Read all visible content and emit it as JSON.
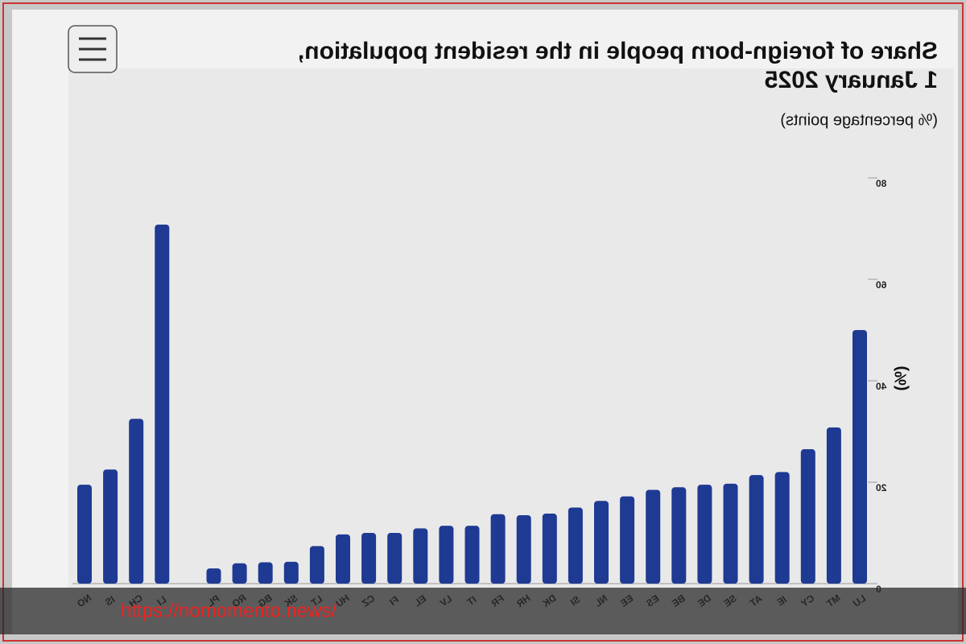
{
  "chart_data": {
    "type": "bar",
    "title": "Share of foreign-born people in the resident population, 1 January 2025",
    "subtitle": "(% percentage points)",
    "y_label": "(%)",
    "categories": [
      "LU",
      "MT",
      "CY",
      "IE",
      "AT",
      "SE",
      "DE",
      "BE",
      "ES",
      "EE",
      "NL",
      "SI",
      "DK",
      "HR",
      "FR",
      "IT",
      "LV",
      "EL",
      "FI",
      "CZ",
      "HU",
      "LT",
      "SK",
      "BG",
      "RO",
      "PL",
      null,
      "LI",
      "CH",
      "IS",
      "NO"
    ],
    "values": [
      50,
      30.8,
      26.5,
      22,
      21.4,
      19.7,
      19.5,
      19,
      18.5,
      17.2,
      16.3,
      15,
      13.8,
      13.5,
      13.7,
      11.4,
      11.4,
      10.9,
      10,
      10,
      9.7,
      7.4,
      4.3,
      4.2,
      4,
      3,
      null,
      70.8,
      32.5,
      22.5,
      19.5
    ],
    "color": "#1f3a93",
    "ylim": [
      0,
      80
    ],
    "yticks": [
      0,
      20,
      40,
      60,
      80
    ],
    "grid": false
  },
  "watermark": "https://nomomento.news/"
}
